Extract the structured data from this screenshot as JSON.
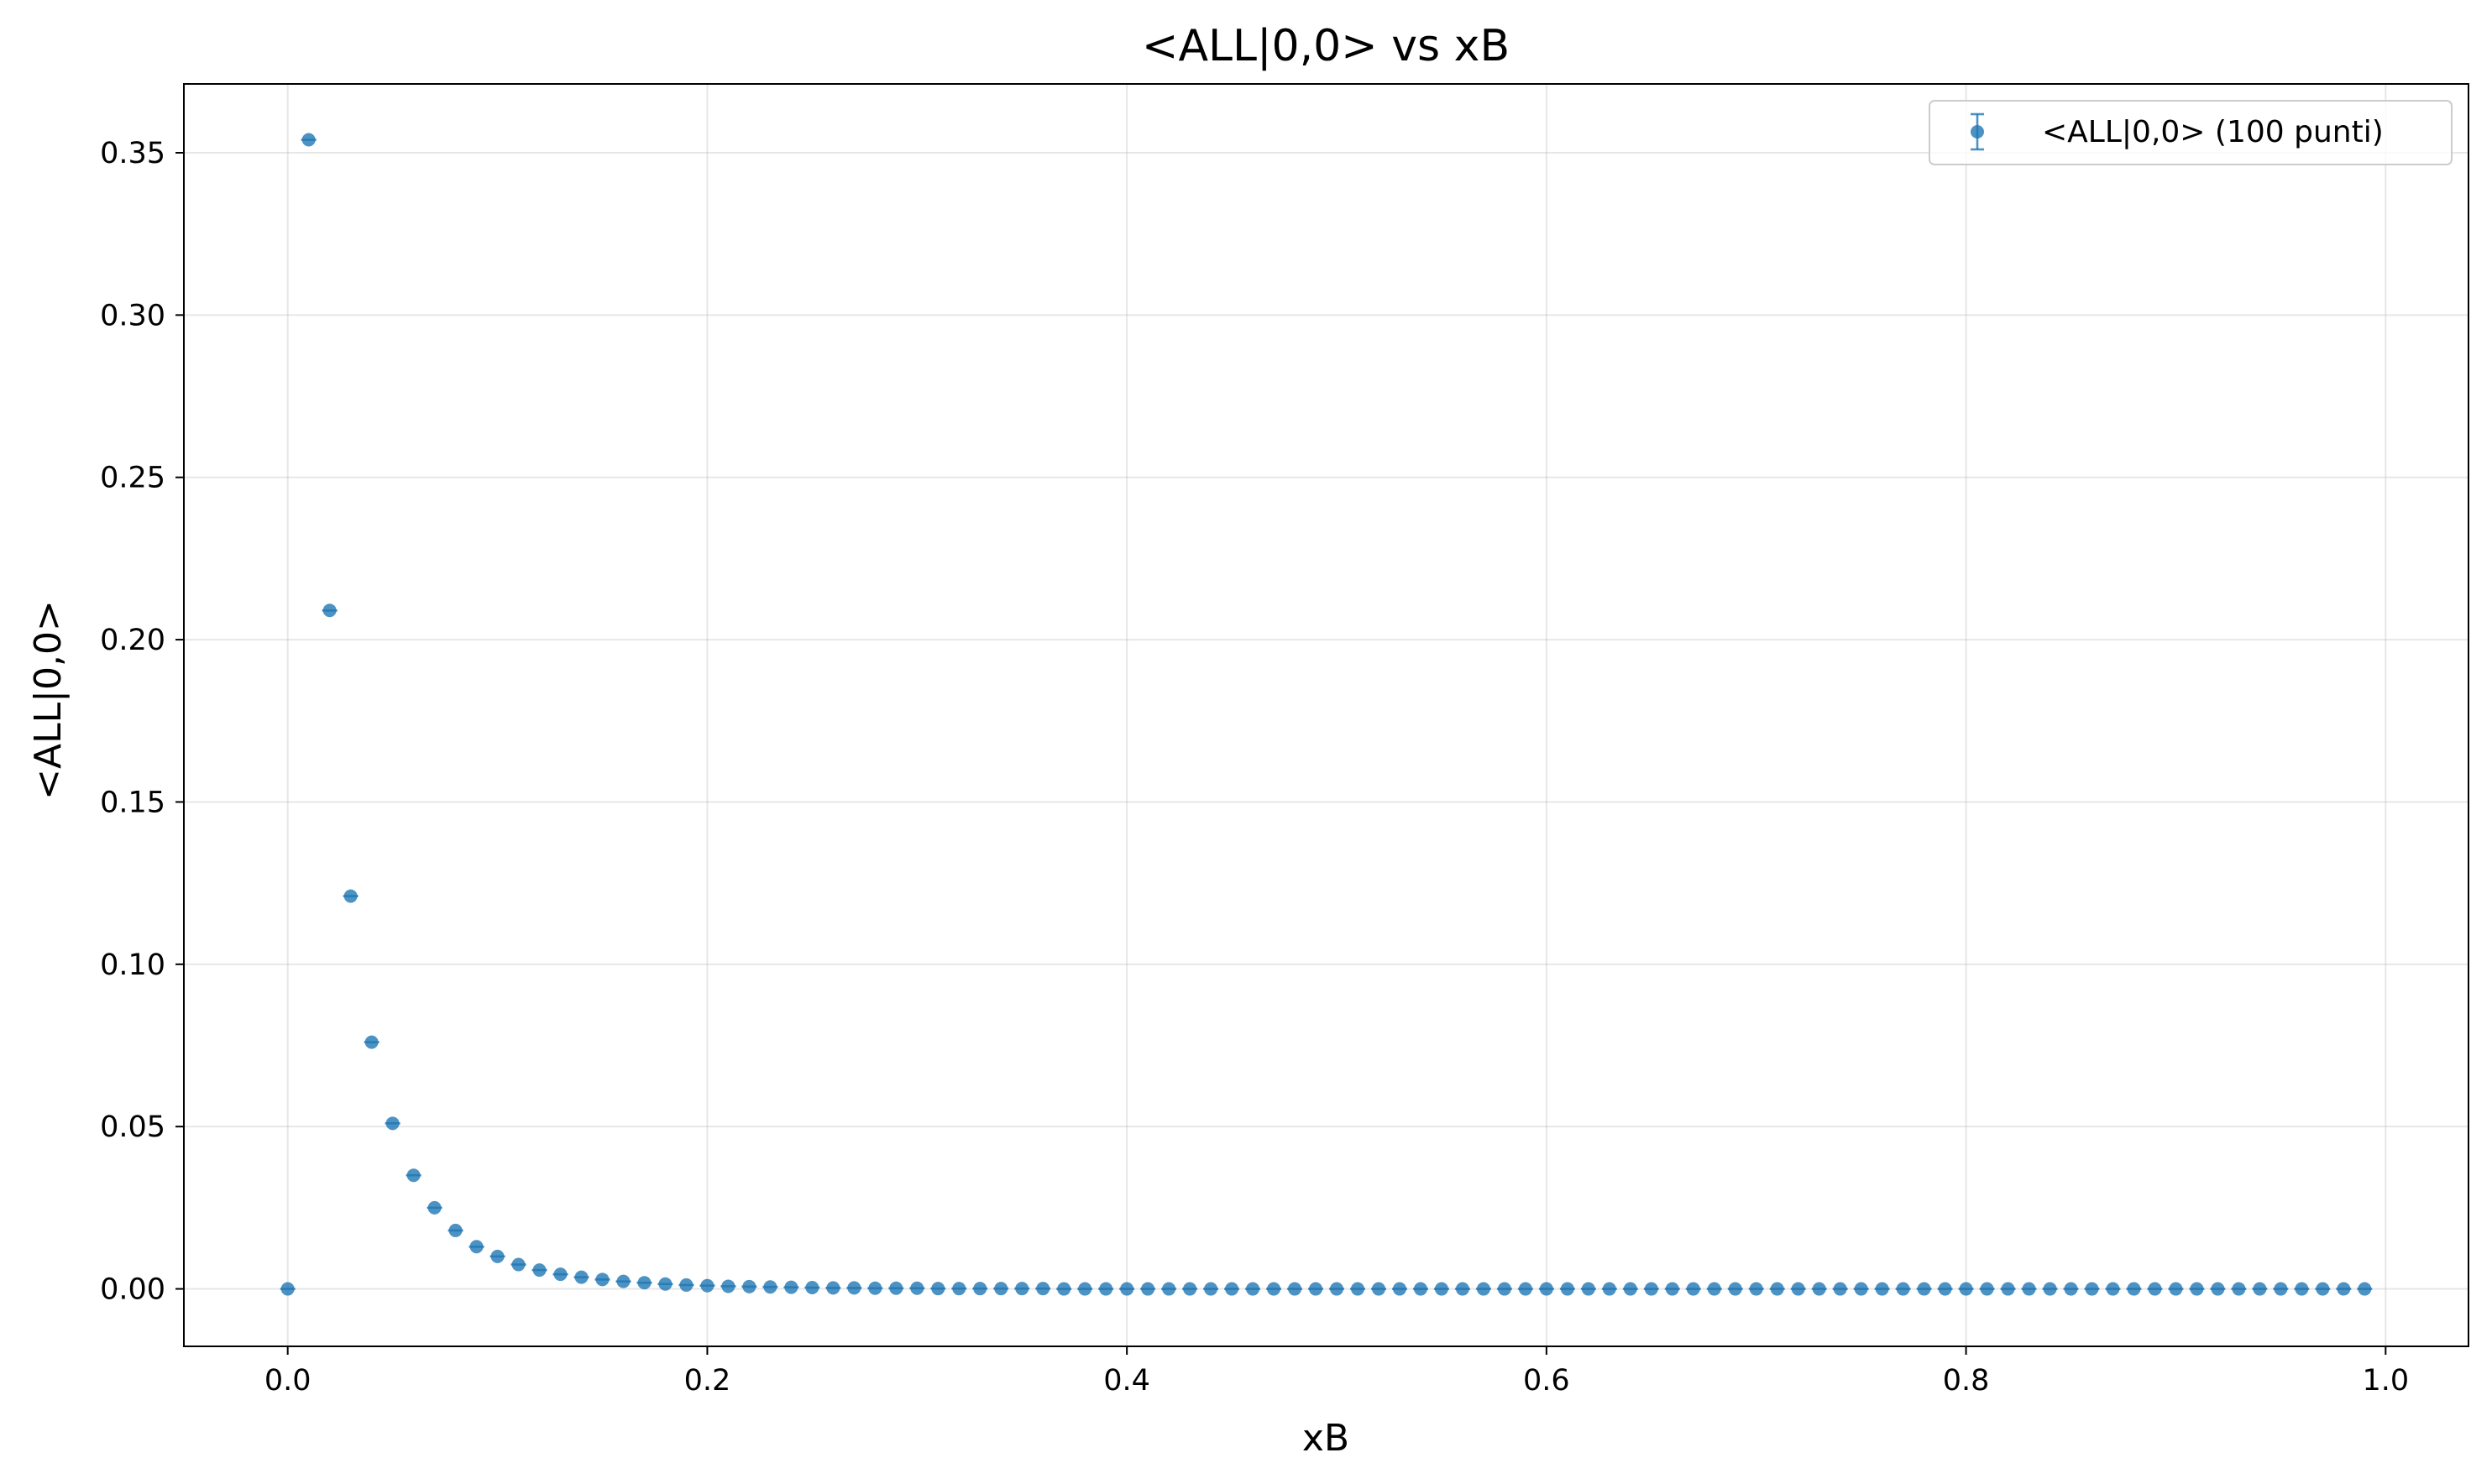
{
  "chart_data": {
    "type": "scatter",
    "title": "<ALL|0,0> vs xB",
    "xlabel": "xB",
    "ylabel": "<ALL|0,0>",
    "xlim": [
      -0.0495,
      1.0395
    ],
    "ylim": [
      -0.0177,
      0.3712
    ],
    "xticks": [
      0.0,
      0.2,
      0.4,
      0.6,
      0.8,
      1.0
    ],
    "xtick_labels": [
      "0.0",
      "0.2",
      "0.4",
      "0.6",
      "0.8",
      "1.0"
    ],
    "yticks": [
      0.0,
      0.05,
      0.1,
      0.15,
      0.2,
      0.25,
      0.3,
      0.35
    ],
    "ytick_labels": [
      "0.00",
      "0.05",
      "0.10",
      "0.15",
      "0.20",
      "0.25",
      "0.30",
      "0.35"
    ],
    "grid": true,
    "legend_position": "top-right",
    "marker_color": "#1f77b4",
    "series": [
      {
        "name": "<ALL|0,0> (100 punti)",
        "x": [
          0.0,
          0.01,
          0.02,
          0.03,
          0.04,
          0.05,
          0.06,
          0.07,
          0.08,
          0.09,
          0.1,
          0.11,
          0.12,
          0.13,
          0.14,
          0.15,
          0.16,
          0.17,
          0.18,
          0.19,
          0.2,
          0.21,
          0.22,
          0.23,
          0.24,
          0.25,
          0.26,
          0.27,
          0.28,
          0.29,
          0.3,
          0.31,
          0.32,
          0.33,
          0.34,
          0.35,
          0.36,
          0.37,
          0.38,
          0.39,
          0.4,
          0.41,
          0.42,
          0.43,
          0.44,
          0.45,
          0.46,
          0.47,
          0.48,
          0.49,
          0.5,
          0.51,
          0.52,
          0.53,
          0.54,
          0.55,
          0.56,
          0.57,
          0.58,
          0.59,
          0.6,
          0.61,
          0.62,
          0.63,
          0.64,
          0.65,
          0.66,
          0.67,
          0.68,
          0.69,
          0.7,
          0.71,
          0.72,
          0.73,
          0.74,
          0.75,
          0.76,
          0.77,
          0.78,
          0.79,
          0.8,
          0.81,
          0.82,
          0.83,
          0.84,
          0.85,
          0.86,
          0.87,
          0.88,
          0.89,
          0.9,
          0.91,
          0.92,
          0.93,
          0.94,
          0.95,
          0.96,
          0.97,
          0.98,
          0.99
        ],
        "y": [
          0.0,
          0.354,
          0.209,
          0.121,
          0.076,
          0.051,
          0.035,
          0.025,
          0.018,
          0.013,
          0.01,
          0.0075,
          0.0058,
          0.0045,
          0.0036,
          0.0029,
          0.0023,
          0.0019,
          0.0015,
          0.0012,
          0.001,
          0.0008,
          0.0007,
          0.0006,
          0.0005,
          0.0004,
          0.0003,
          0.0003,
          0.0002,
          0.0002,
          0.0002,
          0.0001,
          0.0001,
          0.0001,
          0.0001,
          0.0001,
          0.0001,
          0.0,
          0.0,
          0.0,
          0.0,
          0.0,
          0.0,
          0.0,
          0.0,
          0.0,
          0.0,
          0.0,
          0.0,
          0.0,
          0.0,
          0.0,
          0.0,
          0.0,
          0.0,
          0.0,
          0.0,
          0.0,
          0.0,
          0.0,
          0.0,
          0.0,
          0.0,
          0.0,
          0.0,
          0.0,
          0.0,
          0.0,
          0.0,
          0.0,
          0.0,
          0.0,
          0.0,
          0.0,
          0.0,
          0.0,
          0.0,
          0.0,
          0.0,
          0.0,
          0.0,
          0.0,
          0.0,
          0.0,
          0.0,
          0.0,
          0.0,
          0.0,
          0.0,
          0.0,
          0.0,
          0.0,
          0.0,
          0.0,
          0.0,
          0.0,
          0.0,
          0.0,
          0.0,
          0.0
        ]
      }
    ]
  }
}
